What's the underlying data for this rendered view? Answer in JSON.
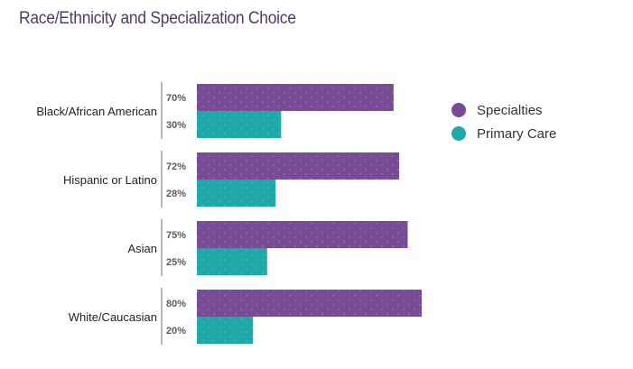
{
  "chart_data": {
    "type": "bar",
    "orientation": "horizontal",
    "title": "Race/Ethnicity and Specialization Choice",
    "categories": [
      "Black/African American",
      "Hispanic or Latino",
      "Asian",
      "White/Caucasian"
    ],
    "series": [
      {
        "name": "Specialties",
        "color": "#774b96",
        "values": [
          70,
          72,
          75,
          80
        ],
        "labels": [
          "70%",
          "72%",
          "75%",
          "80%"
        ]
      },
      {
        "name": "Primary Care",
        "color": "#1fa8a8",
        "values": [
          30,
          28,
          25,
          20
        ],
        "labels": [
          "30%",
          "28%",
          "25%",
          "20%"
        ]
      }
    ],
    "xlabel": "",
    "ylabel": "",
    "xlim": [
      0,
      100
    ],
    "grid": false,
    "legend_position": "right"
  }
}
